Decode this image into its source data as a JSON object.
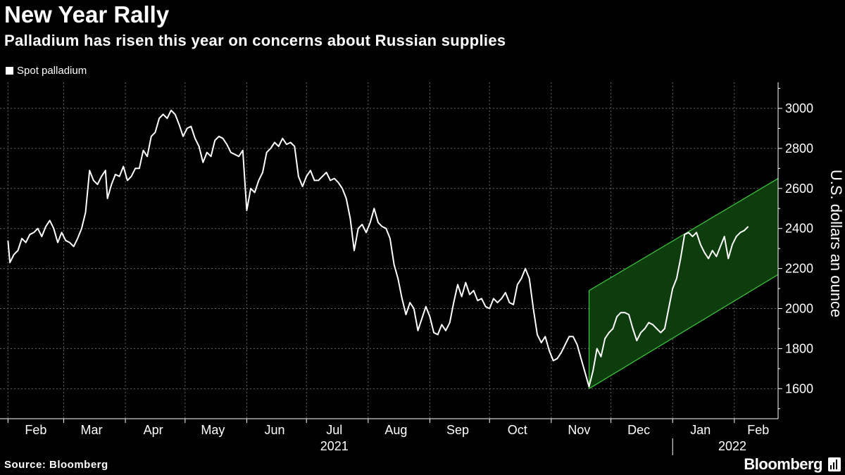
{
  "title": "New Year Rally",
  "subtitle": "Palladium has risen this year on concerns about Russian supplies",
  "source": "Source: Bloomberg",
  "brand": "Bloomberg",
  "colors": {
    "background": "#000000",
    "line": "#ffffff",
    "channel_fill": "#0d3d0d",
    "channel_edge": "#3ccc3c",
    "grid": "#666666"
  },
  "chart_data": {
    "type": "line",
    "title": "New Year Rally",
    "subtitle": "Palladium has risen this year on concerns about Russian supplies",
    "ylabel": "U.S. dollars an ounce",
    "ylim": [
      1450,
      3130
    ],
    "xlim": [
      "2021-01-28",
      "2022-02-23"
    ],
    "y_ticks": [
      1600,
      1800,
      2000,
      2200,
      2400,
      2600,
      2800,
      3000
    ],
    "x_ticks": [
      {
        "label": "Feb",
        "date": "2021-02-15"
      },
      {
        "label": "Mar",
        "date": "2021-03-15"
      },
      {
        "label": "Apr",
        "date": "2021-04-15"
      },
      {
        "label": "May",
        "date": "2021-05-15"
      },
      {
        "label": "Jun",
        "date": "2021-06-15"
      },
      {
        "label": "Jul",
        "date": "2021-07-15"
      },
      {
        "label": "Aug",
        "date": "2021-08-15"
      },
      {
        "label": "Sep",
        "date": "2021-09-15"
      },
      {
        "label": "Oct",
        "date": "2021-10-15"
      },
      {
        "label": "Nov",
        "date": "2021-11-15"
      },
      {
        "label": "Dec",
        "date": "2021-12-15"
      },
      {
        "label": "Jan",
        "date": "2022-01-15"
      },
      {
        "label": "Feb",
        "date": "2022-02-13"
      }
    ],
    "year_labels": [
      {
        "label": "2021",
        "date": "2021-07-15"
      },
      {
        "label": "2022",
        "date": "2022-01-31"
      }
    ],
    "year_divider": "2022-01-01",
    "grid": true,
    "legend": "top-left",
    "series": [
      {
        "name": "Spot palladium",
        "points": [
          [
            "2021-02-01",
            2340
          ],
          [
            "2021-02-02",
            2230
          ],
          [
            "2021-02-04",
            2270
          ],
          [
            "2021-02-06",
            2290
          ],
          [
            "2021-02-08",
            2350
          ],
          [
            "2021-02-10",
            2330
          ],
          [
            "2021-02-12",
            2370
          ],
          [
            "2021-02-14",
            2380
          ],
          [
            "2021-02-16",
            2400
          ],
          [
            "2021-02-18",
            2360
          ],
          [
            "2021-02-20",
            2410
          ],
          [
            "2021-02-22",
            2440
          ],
          [
            "2021-02-24",
            2400
          ],
          [
            "2021-02-26",
            2330
          ],
          [
            "2021-02-28",
            2380
          ],
          [
            "2021-03-02",
            2340
          ],
          [
            "2021-03-04",
            2330
          ],
          [
            "2021-03-06",
            2310
          ],
          [
            "2021-03-08",
            2350
          ],
          [
            "2021-03-10",
            2400
          ],
          [
            "2021-03-12",
            2480
          ],
          [
            "2021-03-14",
            2690
          ],
          [
            "2021-03-16",
            2640
          ],
          [
            "2021-03-18",
            2620
          ],
          [
            "2021-03-20",
            2660
          ],
          [
            "2021-03-22",
            2690
          ],
          [
            "2021-03-23",
            2550
          ],
          [
            "2021-03-25",
            2620
          ],
          [
            "2021-03-27",
            2670
          ],
          [
            "2021-03-29",
            2660
          ],
          [
            "2021-03-31",
            2710
          ],
          [
            "2021-04-02",
            2640
          ],
          [
            "2021-04-04",
            2660
          ],
          [
            "2021-04-06",
            2700
          ],
          [
            "2021-04-08",
            2700
          ],
          [
            "2021-04-10",
            2790
          ],
          [
            "2021-04-12",
            2760
          ],
          [
            "2021-04-14",
            2860
          ],
          [
            "2021-04-16",
            2880
          ],
          [
            "2021-04-18",
            2950
          ],
          [
            "2021-04-20",
            2970
          ],
          [
            "2021-04-22",
            2950
          ],
          [
            "2021-04-24",
            2990
          ],
          [
            "2021-04-26",
            2970
          ],
          [
            "2021-04-28",
            2920
          ],
          [
            "2021-04-30",
            2860
          ],
          [
            "2021-05-02",
            2900
          ],
          [
            "2021-05-04",
            2910
          ],
          [
            "2021-05-06",
            2850
          ],
          [
            "2021-05-08",
            2810
          ],
          [
            "2021-05-10",
            2730
          ],
          [
            "2021-05-12",
            2780
          ],
          [
            "2021-05-14",
            2760
          ],
          [
            "2021-05-16",
            2840
          ],
          [
            "2021-05-18",
            2860
          ],
          [
            "2021-05-20",
            2850
          ],
          [
            "2021-05-22",
            2820
          ],
          [
            "2021-05-24",
            2780
          ],
          [
            "2021-05-26",
            2770
          ],
          [
            "2021-05-28",
            2760
          ],
          [
            "2021-05-30",
            2790
          ],
          [
            "2021-06-01",
            2490
          ],
          [
            "2021-06-03",
            2600
          ],
          [
            "2021-06-05",
            2580
          ],
          [
            "2021-06-07",
            2640
          ],
          [
            "2021-06-09",
            2680
          ],
          [
            "2021-06-11",
            2780
          ],
          [
            "2021-06-13",
            2800
          ],
          [
            "2021-06-15",
            2830
          ],
          [
            "2021-06-17",
            2810
          ],
          [
            "2021-06-19",
            2850
          ],
          [
            "2021-06-21",
            2820
          ],
          [
            "2021-06-23",
            2830
          ],
          [
            "2021-06-25",
            2810
          ],
          [
            "2021-06-27",
            2660
          ],
          [
            "2021-06-29",
            2610
          ],
          [
            "2021-07-01",
            2660
          ],
          [
            "2021-07-03",
            2690
          ],
          [
            "2021-07-05",
            2640
          ],
          [
            "2021-07-07",
            2640
          ],
          [
            "2021-07-09",
            2660
          ],
          [
            "2021-07-11",
            2680
          ],
          [
            "2021-07-13",
            2640
          ],
          [
            "2021-07-15",
            2650
          ],
          [
            "2021-07-17",
            2630
          ],
          [
            "2021-07-19",
            2600
          ],
          [
            "2021-07-21",
            2550
          ],
          [
            "2021-07-23",
            2450
          ],
          [
            "2021-07-25",
            2290
          ],
          [
            "2021-07-27",
            2400
          ],
          [
            "2021-07-29",
            2420
          ],
          [
            "2021-07-31",
            2380
          ],
          [
            "2021-08-02",
            2430
          ],
          [
            "2021-08-04",
            2500
          ],
          [
            "2021-08-06",
            2430
          ],
          [
            "2021-08-08",
            2410
          ],
          [
            "2021-08-10",
            2400
          ],
          [
            "2021-08-12",
            2350
          ],
          [
            "2021-08-14",
            2220
          ],
          [
            "2021-08-16",
            2150
          ],
          [
            "2021-08-18",
            2050
          ],
          [
            "2021-08-20",
            1970
          ],
          [
            "2021-08-22",
            2030
          ],
          [
            "2021-08-24",
            2000
          ],
          [
            "2021-08-26",
            1890
          ],
          [
            "2021-08-28",
            1950
          ],
          [
            "2021-08-30",
            2010
          ],
          [
            "2021-09-01",
            1960
          ],
          [
            "2021-09-03",
            1880
          ],
          [
            "2021-09-05",
            1870
          ],
          [
            "2021-09-07",
            1920
          ],
          [
            "2021-09-09",
            1890
          ],
          [
            "2021-09-11",
            1930
          ],
          [
            "2021-09-13",
            2030
          ],
          [
            "2021-09-15",
            2120
          ],
          [
            "2021-09-17",
            2060
          ],
          [
            "2021-09-19",
            2130
          ],
          [
            "2021-09-21",
            2070
          ],
          [
            "2021-09-23",
            2090
          ],
          [
            "2021-09-25",
            2040
          ],
          [
            "2021-09-27",
            2050
          ],
          [
            "2021-09-29",
            2010
          ],
          [
            "2021-10-01",
            2000
          ],
          [
            "2021-10-03",
            2050
          ],
          [
            "2021-10-05",
            2030
          ],
          [
            "2021-10-07",
            2050
          ],
          [
            "2021-10-09",
            2080
          ],
          [
            "2021-10-11",
            2030
          ],
          [
            "2021-10-13",
            2020
          ],
          [
            "2021-10-15",
            2120
          ],
          [
            "2021-10-17",
            2150
          ],
          [
            "2021-10-19",
            2200
          ],
          [
            "2021-10-21",
            2150
          ],
          [
            "2021-10-23",
            2000
          ],
          [
            "2021-10-25",
            1870
          ],
          [
            "2021-10-27",
            1830
          ],
          [
            "2021-10-29",
            1860
          ],
          [
            "2021-10-31",
            1790
          ],
          [
            "2021-11-02",
            1740
          ],
          [
            "2021-11-04",
            1750
          ],
          [
            "2021-11-06",
            1780
          ],
          [
            "2021-11-08",
            1820
          ],
          [
            "2021-11-10",
            1860
          ],
          [
            "2021-11-12",
            1860
          ],
          [
            "2021-11-14",
            1820
          ],
          [
            "2021-11-16",
            1750
          ],
          [
            "2021-11-18",
            1680
          ],
          [
            "2021-11-20",
            1610
          ],
          [
            "2021-11-22",
            1690
          ],
          [
            "2021-11-24",
            1800
          ],
          [
            "2021-11-26",
            1760
          ],
          [
            "2021-11-28",
            1850
          ],
          [
            "2021-11-30",
            1880
          ],
          [
            "2021-12-02",
            1900
          ],
          [
            "2021-12-04",
            1960
          ],
          [
            "2021-12-06",
            1980
          ],
          [
            "2021-12-08",
            1980
          ],
          [
            "2021-12-10",
            1970
          ],
          [
            "2021-12-12",
            1900
          ],
          [
            "2021-12-14",
            1840
          ],
          [
            "2021-12-16",
            1880
          ],
          [
            "2021-12-18",
            1900
          ],
          [
            "2021-12-20",
            1930
          ],
          [
            "2021-12-22",
            1920
          ],
          [
            "2021-12-24",
            1900
          ],
          [
            "2021-12-26",
            1880
          ],
          [
            "2021-12-28",
            1900
          ],
          [
            "2021-12-30",
            2000
          ],
          [
            "2022-01-01",
            2100
          ],
          [
            "2022-01-03",
            2150
          ],
          [
            "2022-01-05",
            2250
          ],
          [
            "2022-01-07",
            2370
          ],
          [
            "2022-01-09",
            2380
          ],
          [
            "2022-01-11",
            2360
          ],
          [
            "2022-01-13",
            2380
          ],
          [
            "2022-01-15",
            2320
          ],
          [
            "2022-01-17",
            2280
          ],
          [
            "2022-01-19",
            2250
          ],
          [
            "2022-01-21",
            2290
          ],
          [
            "2022-01-23",
            2260
          ],
          [
            "2022-01-25",
            2310
          ],
          [
            "2022-01-27",
            2360
          ],
          [
            "2022-01-29",
            2250
          ],
          [
            "2022-01-31",
            2320
          ],
          [
            "2022-02-02",
            2360
          ],
          [
            "2022-02-04",
            2380
          ],
          [
            "2022-02-06",
            2390
          ],
          [
            "2022-02-08",
            2410
          ]
        ]
      }
    ],
    "channel": {
      "upper": [
        [
          "2021-11-20",
          2090
        ],
        [
          "2022-02-23",
          2650
        ]
      ],
      "lower": [
        [
          "2021-11-20",
          1600
        ],
        [
          "2022-02-23",
          2170
        ]
      ]
    }
  }
}
